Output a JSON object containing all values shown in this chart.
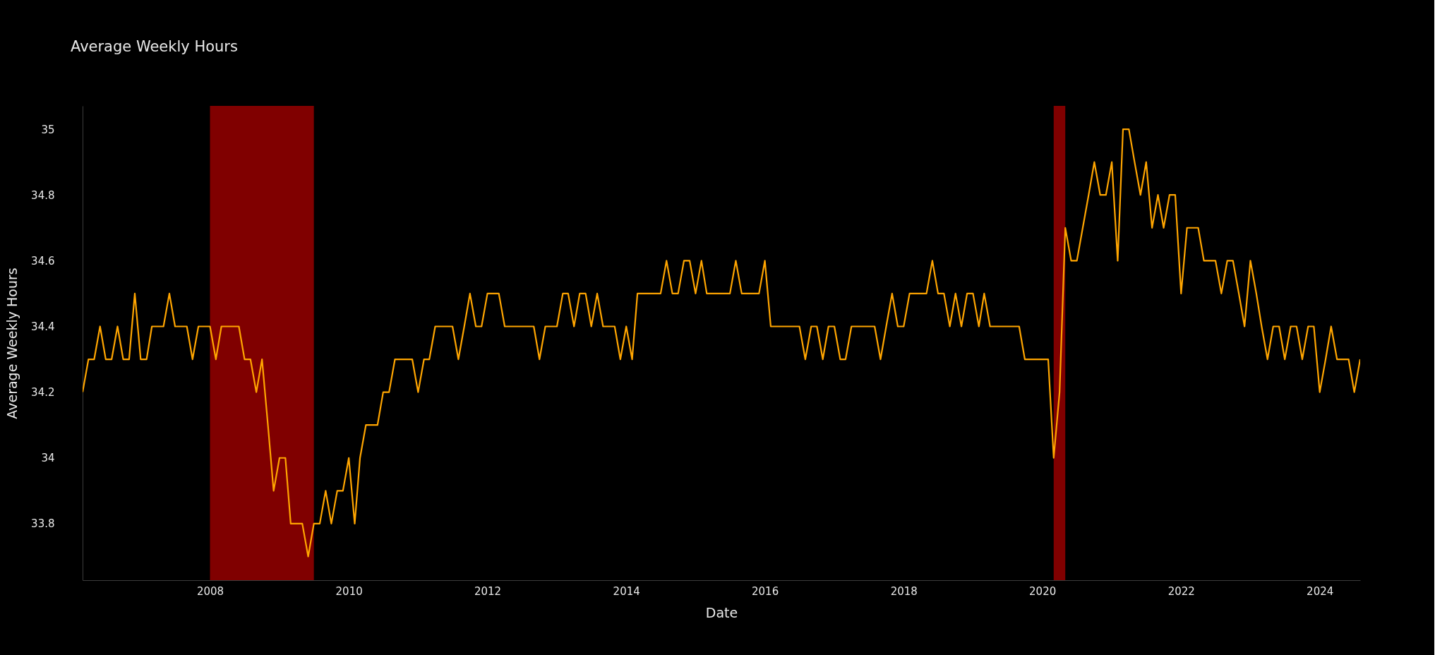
{
  "chart_data": {
    "type": "line",
    "title": "Average Weekly Hours",
    "xlabel": "Date",
    "ylabel": "Average Weekly Hours",
    "x": [
      "2006-03",
      "2006-04",
      "2006-05",
      "2006-06",
      "2006-07",
      "2006-08",
      "2006-09",
      "2006-10",
      "2006-11",
      "2006-12",
      "2007-01",
      "2007-02",
      "2007-03",
      "2007-04",
      "2007-05",
      "2007-06",
      "2007-07",
      "2007-08",
      "2007-09",
      "2007-10",
      "2007-11",
      "2007-12",
      "2008-01",
      "2008-02",
      "2008-03",
      "2008-04",
      "2008-05",
      "2008-06",
      "2008-07",
      "2008-08",
      "2008-09",
      "2008-10",
      "2008-11",
      "2008-12",
      "2009-01",
      "2009-02",
      "2009-03",
      "2009-04",
      "2009-05",
      "2009-06",
      "2009-07",
      "2009-08",
      "2009-09",
      "2009-10",
      "2009-11",
      "2009-12",
      "2010-01",
      "2010-02",
      "2010-03",
      "2010-04",
      "2010-05",
      "2010-06",
      "2010-07",
      "2010-08",
      "2010-09",
      "2010-10",
      "2010-11",
      "2010-12",
      "2011-01",
      "2011-02",
      "2011-03",
      "2011-04",
      "2011-05",
      "2011-06",
      "2011-07",
      "2011-08",
      "2011-09",
      "2011-10",
      "2011-11",
      "2011-12",
      "2012-01",
      "2012-02",
      "2012-03",
      "2012-04",
      "2012-05",
      "2012-06",
      "2012-07",
      "2012-08",
      "2012-09",
      "2012-10",
      "2012-11",
      "2012-12",
      "2013-01",
      "2013-02",
      "2013-03",
      "2013-04",
      "2013-05",
      "2013-06",
      "2013-07",
      "2013-08",
      "2013-09",
      "2013-10",
      "2013-11",
      "2013-12",
      "2014-01",
      "2014-02",
      "2014-03",
      "2014-04",
      "2014-05",
      "2014-06",
      "2014-07",
      "2014-08",
      "2014-09",
      "2014-10",
      "2014-11",
      "2014-12",
      "2015-01",
      "2015-02",
      "2015-03",
      "2015-04",
      "2015-05",
      "2015-06",
      "2015-07",
      "2015-08",
      "2015-09",
      "2015-10",
      "2015-11",
      "2015-12",
      "2016-01",
      "2016-02",
      "2016-03",
      "2016-04",
      "2016-05",
      "2016-06",
      "2016-07",
      "2016-08",
      "2016-09",
      "2016-10",
      "2016-11",
      "2016-12",
      "2017-01",
      "2017-02",
      "2017-03",
      "2017-04",
      "2017-05",
      "2017-06",
      "2017-07",
      "2017-08",
      "2017-09",
      "2017-10",
      "2017-11",
      "2017-12",
      "2018-01",
      "2018-02",
      "2018-03",
      "2018-04",
      "2018-05",
      "2018-06",
      "2018-07",
      "2018-08",
      "2018-09",
      "2018-10",
      "2018-11",
      "2018-12",
      "2019-01",
      "2019-02",
      "2019-03",
      "2019-04",
      "2019-05",
      "2019-06",
      "2019-07",
      "2019-08",
      "2019-09",
      "2019-10",
      "2019-11",
      "2019-12",
      "2020-01",
      "2020-02",
      "2020-03",
      "2020-04",
      "2020-05",
      "2020-06",
      "2020-07",
      "2020-08",
      "2020-09",
      "2020-10",
      "2020-11",
      "2020-12",
      "2021-01",
      "2021-02",
      "2021-03",
      "2021-04",
      "2021-05",
      "2021-06",
      "2021-07",
      "2021-08",
      "2021-09",
      "2021-10",
      "2021-11",
      "2021-12",
      "2022-01",
      "2022-02",
      "2022-03",
      "2022-04",
      "2022-05",
      "2022-06",
      "2022-07",
      "2022-08",
      "2022-09",
      "2022-10",
      "2022-11",
      "2022-12",
      "2023-01",
      "2023-02",
      "2023-03",
      "2023-04",
      "2023-05",
      "2023-06",
      "2023-07",
      "2023-08",
      "2023-09",
      "2023-10",
      "2023-11",
      "2023-12",
      "2024-01",
      "2024-02",
      "2024-03",
      "2024-04",
      "2024-05",
      "2024-06",
      "2024-07",
      "2024-08"
    ],
    "series": [
      {
        "color": "#ffa500",
        "values": [
          34.2,
          34.3,
          34.3,
          34.4,
          34.3,
          34.3,
          34.4,
          34.3,
          34.3,
          34.5,
          34.3,
          34.3,
          34.4,
          34.4,
          34.4,
          34.5,
          34.4,
          34.4,
          34.4,
          34.3,
          34.4,
          34.4,
          34.4,
          34.3,
          34.4,
          34.4,
          34.4,
          34.4,
          34.3,
          34.3,
          34.2,
          34.3,
          34.1,
          33.9,
          34.0,
          34.0,
          33.8,
          33.8,
          33.8,
          33.7,
          33.8,
          33.8,
          33.9,
          33.8,
          33.9,
          33.9,
          34.0,
          33.8,
          34.0,
          34.1,
          34.1,
          34.1,
          34.2,
          34.2,
          34.3,
          34.3,
          34.3,
          34.3,
          34.2,
          34.3,
          34.3,
          34.4,
          34.4,
          34.4,
          34.4,
          34.3,
          34.4,
          34.5,
          34.4,
          34.4,
          34.5,
          34.5,
          34.5,
          34.4,
          34.4,
          34.4,
          34.4,
          34.4,
          34.4,
          34.3,
          34.4,
          34.4,
          34.4,
          34.5,
          34.5,
          34.4,
          34.5,
          34.5,
          34.4,
          34.5,
          34.4,
          34.4,
          34.4,
          34.3,
          34.4,
          34.3,
          34.5,
          34.5,
          34.5,
          34.5,
          34.5,
          34.6,
          34.5,
          34.5,
          34.6,
          34.6,
          34.5,
          34.6,
          34.5,
          34.5,
          34.5,
          34.5,
          34.5,
          34.6,
          34.5,
          34.5,
          34.5,
          34.5,
          34.6,
          34.4,
          34.4,
          34.4,
          34.4,
          34.4,
          34.4,
          34.3,
          34.4,
          34.4,
          34.3,
          34.4,
          34.4,
          34.3,
          34.3,
          34.4,
          34.4,
          34.4,
          34.4,
          34.4,
          34.3,
          34.4,
          34.5,
          34.4,
          34.4,
          34.5,
          34.5,
          34.5,
          34.5,
          34.6,
          34.5,
          34.5,
          34.4,
          34.5,
          34.4,
          34.5,
          34.5,
          34.4,
          34.5,
          34.4,
          34.4,
          34.4,
          34.4,
          34.4,
          34.4,
          34.3,
          34.3,
          34.3,
          34.3,
          34.3,
          34.0,
          34.2,
          34.7,
          34.6,
          34.6,
          34.7,
          34.8,
          34.9,
          34.8,
          34.8,
          34.9,
          34.6,
          35.0,
          35.0,
          34.9,
          34.8,
          34.9,
          34.7,
          34.8,
          34.7,
          34.8,
          34.8,
          34.5,
          34.7,
          34.7,
          34.7,
          34.6,
          34.6,
          34.6,
          34.5,
          34.6,
          34.6,
          34.5,
          34.4,
          34.6,
          34.5,
          34.4,
          34.3,
          34.4,
          34.4,
          34.3,
          34.4,
          34.4,
          34.3,
          34.4,
          34.4,
          34.2,
          34.3,
          34.4,
          34.3,
          34.3,
          34.3,
          34.2,
          34.3
        ]
      }
    ],
    "xlim": [
      "2006-03",
      "2024-08"
    ],
    "xticks": [
      "2008",
      "2010",
      "2012",
      "2014",
      "2016",
      "2018",
      "2020",
      "2022",
      "2024"
    ],
    "ylim": [
      33.628,
      35.071
    ],
    "yticks": [
      33.8,
      34,
      34.2,
      34.4,
      34.6,
      34.8,
      35
    ],
    "bands": [
      {
        "axis": "x",
        "from": "2008-01",
        "to": "2009-07",
        "color": "#800000"
      },
      {
        "axis": "x",
        "from": "2020-03",
        "to": "2020-05",
        "color": "#800000"
      }
    ],
    "grid": false,
    "marker": "none",
    "line_style": "solid"
  }
}
